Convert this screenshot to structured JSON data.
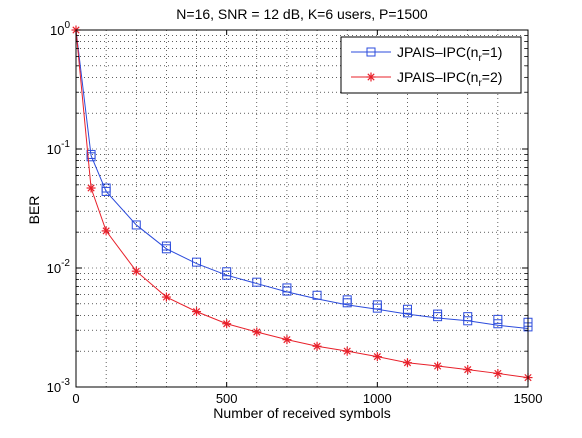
{
  "chart_data": {
    "type": "line",
    "title": "N=16, SNR = 12 dB, K=6 users, P=1500",
    "xlabel": "Number of received symbols",
    "ylabel": "BER",
    "xlim": [
      0,
      1500
    ],
    "ylim": [
      0.001,
      1
    ],
    "yscale": "log",
    "grid": true,
    "legend_position": "top-right",
    "x_ticks": [
      0,
      500,
      1000,
      1500
    ],
    "y_ticks": [
      {
        "value": 1,
        "base": "10",
        "exp": "0"
      },
      {
        "value": 0.1,
        "base": "10",
        "exp": "-1"
      },
      {
        "value": 0.01,
        "base": "10",
        "exp": "-2"
      },
      {
        "value": 0.001,
        "base": "10",
        "exp": "-3"
      }
    ],
    "series": [
      {
        "name": "JPAIS–IPC(n_r=1)",
        "legend_main": "JPAIS–IPC(n",
        "legend_sub": "r",
        "legend_tail": "=1)",
        "color": "#2b4bdc",
        "marker": "square",
        "line_x": [
          0,
          50,
          100,
          200,
          300,
          400,
          500,
          600,
          700,
          800,
          900,
          1000,
          1100,
          1200,
          1300,
          1400,
          1500
        ],
        "line_y": [
          1,
          0.088,
          0.044,
          0.023,
          0.0145,
          0.0109,
          0.0087,
          0.0074,
          0.0063,
          0.0055,
          0.0049,
          0.0045,
          0.0041,
          0.0038,
          0.0036,
          0.0033,
          0.0031
        ],
        "marker_x": [
          50,
          50,
          100,
          100,
          200,
          300,
          300,
          400,
          500,
          500,
          600,
          700,
          700,
          800,
          900,
          900,
          1000,
          1000,
          1100,
          1100,
          1200,
          1200,
          1300,
          1300,
          1400,
          1400,
          1500,
          1500
        ],
        "marker_y": [
          0.09,
          0.086,
          0.047,
          0.044,
          0.023,
          0.0153,
          0.0145,
          0.0112,
          0.0093,
          0.0087,
          0.0076,
          0.0068,
          0.0064,
          0.0059,
          0.0054,
          0.0051,
          0.0049,
          0.0046,
          0.0045,
          0.0042,
          0.0041,
          0.0039,
          0.0039,
          0.0036,
          0.0037,
          0.0034,
          0.0035,
          0.0032
        ]
      },
      {
        "name": "JPAIS–IPC(n_r=2)",
        "legend_main": "JPAIS–IPC(n",
        "legend_sub": "r",
        "legend_tail": "=2)",
        "color": "#e8202a",
        "marker": "star",
        "line_x": [
          0,
          50,
          100,
          200,
          300,
          400,
          500,
          600,
          700,
          800,
          900,
          1000,
          1100,
          1200,
          1300,
          1400,
          1500
        ],
        "line_y": [
          1,
          0.047,
          0.0205,
          0.0094,
          0.0057,
          0.0043,
          0.0034,
          0.0029,
          0.0025,
          0.0022,
          0.002,
          0.0018,
          0.0016,
          0.0015,
          0.0014,
          0.0013,
          0.0012
        ],
        "marker_x": [
          0,
          50,
          100,
          200,
          300,
          400,
          500,
          600,
          700,
          800,
          900,
          1000,
          1100,
          1200,
          1300,
          1400,
          1500
        ],
        "marker_y": [
          1,
          0.047,
          0.0205,
          0.0094,
          0.0057,
          0.0043,
          0.0034,
          0.0029,
          0.0025,
          0.0022,
          0.002,
          0.0018,
          0.0016,
          0.0015,
          0.0014,
          0.0013,
          0.0012
        ]
      }
    ]
  }
}
